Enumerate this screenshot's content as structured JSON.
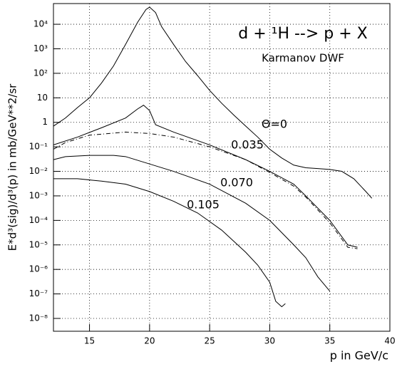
{
  "chart_data": {
    "type": "line",
    "title": "d + ¹H --> p + X",
    "subtitle": "Karmanov DWF",
    "x_label": "p in GeV/c",
    "y_label": "E*d³(sig)/d³(p) in mb/GeV**2/sr",
    "xlim": [
      12,
      40
    ],
    "xticks": [
      15,
      20,
      25,
      30,
      35,
      40
    ],
    "ylim": [
      3e-09,
      70000.0
    ],
    "log_y": true,
    "grid": true,
    "yticks": [
      {
        "value": 1e-08,
        "label": "10⁻⁸"
      },
      {
        "value": 1e-07,
        "label": "10⁻⁷"
      },
      {
        "value": 1e-06,
        "label": "10⁻⁶"
      },
      {
        "value": 1e-05,
        "label": "10⁻⁵"
      },
      {
        "value": 0.0001,
        "label": "10⁻⁴"
      },
      {
        "value": 0.001,
        "label": "10⁻³"
      },
      {
        "value": 0.01,
        "label": "10⁻²"
      },
      {
        "value": 0.1,
        "label": "10⁻¹"
      },
      1,
      10,
      {
        "value": 100,
        "label": "10²"
      },
      {
        "value": 1000,
        "label": "10³"
      },
      {
        "value": 10000,
        "label": "10⁴"
      }
    ],
    "series": [
      {
        "name": "Θ=0",
        "color": "#000000",
        "dash": "solid",
        "x": [
          12,
          13,
          14,
          15,
          16,
          17,
          18,
          19,
          19.7,
          20,
          20.5,
          21,
          22,
          23,
          24,
          25,
          26,
          27,
          28,
          29,
          30,
          31,
          32,
          33,
          34,
          35,
          36,
          37,
          38,
          38.5
        ],
        "values": [
          0.7,
          1.5,
          4,
          10,
          40,
          200,
          1500,
          12000,
          40000,
          50000,
          30000,
          8000,
          1500,
          300,
          80,
          20,
          6,
          2,
          0.7,
          0.25,
          0.08,
          0.035,
          0.018,
          0.014,
          0.013,
          0.012,
          0.01,
          0.005,
          0.0015,
          0.0008
        ]
      },
      {
        "name": "0.035",
        "color": "#000000",
        "dash": "solid",
        "x": [
          12,
          14,
          16,
          18,
          19,
          19.5,
          20,
          20.5,
          22,
          25,
          28,
          30,
          32,
          33,
          35,
          36.5,
          37.3
        ],
        "values": [
          0.12,
          0.25,
          0.6,
          1.5,
          3.5,
          5,
          3,
          0.8,
          0.4,
          0.12,
          0.03,
          0.01,
          0.003,
          0.001,
          0.0001,
          1e-05,
          8e-06
        ]
      },
      {
        "color": "#000000",
        "dash": "dashdot",
        "x": [
          12,
          13,
          15,
          18,
          20,
          22,
          25,
          28,
          30,
          32,
          33,
          35,
          36.5,
          37.3
        ],
        "values": [
          0.08,
          0.15,
          0.3,
          0.4,
          0.35,
          0.25,
          0.1,
          0.03,
          0.009,
          0.0025,
          0.0009,
          8e-05,
          8e-06,
          7e-06
        ]
      },
      {
        "name": "0.070",
        "color": "#000000",
        "dash": "solid",
        "x": [
          12,
          13,
          15,
          17,
          18,
          20,
          22,
          25,
          28,
          30,
          32,
          33,
          34,
          35
        ],
        "values": [
          0.03,
          0.04,
          0.045,
          0.045,
          0.04,
          0.02,
          0.01,
          0.003,
          0.0005,
          0.0001,
          1e-05,
          3e-06,
          5e-07,
          1.3e-07
        ]
      },
      {
        "name": "0.105",
        "color": "#000000",
        "dash": "solid",
        "x": [
          12,
          14,
          16,
          18,
          20,
          22,
          24,
          26,
          28,
          29,
          30,
          30.5,
          31,
          31.3
        ],
        "values": [
          0.005,
          0.005,
          0.004,
          0.003,
          0.0015,
          0.0006,
          0.0002,
          4e-05,
          5e-06,
          1.5e-06,
          3e-07,
          5e-08,
          3e-08,
          4e-08
        ]
      }
    ]
  }
}
